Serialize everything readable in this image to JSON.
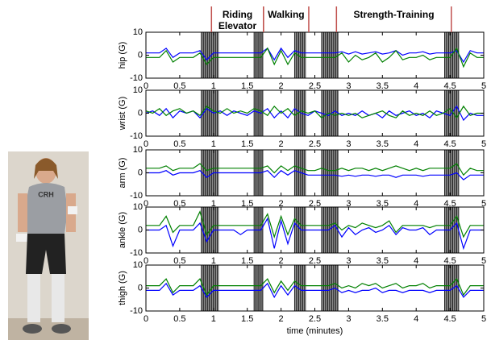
{
  "annotations": {
    "segments": [
      {
        "label": "Riding Elevator",
        "start": 0.97,
        "end": 1.74
      },
      {
        "label": "Walking",
        "start": 1.74,
        "end": 2.41
      },
      {
        "label": "Strength-Training",
        "start": 2.82,
        "end": 4.52
      }
    ],
    "transition_bands": [
      [
        0.82,
        1.08
      ],
      [
        1.6,
        1.74
      ],
      [
        2.2,
        2.37
      ],
      [
        2.6,
        2.85
      ],
      [
        4.42,
        4.63
      ]
    ]
  },
  "chart_data": [
    {
      "type": "line",
      "ylabel": "hip (G)",
      "xlim": [
        0,
        5
      ],
      "ylim": [
        -10,
        10
      ],
      "yticks": [
        -10,
        0,
        10
      ],
      "xticks": [
        0,
        0.5,
        1,
        1.5,
        2,
        2.5,
        3,
        3.5,
        4,
        4.5,
        5
      ],
      "x": [
        0,
        0.1,
        0.2,
        0.3,
        0.4,
        0.5,
        0.6,
        0.7,
        0.8,
        0.9,
        1,
        1.1,
        1.2,
        1.3,
        1.4,
        1.5,
        1.6,
        1.7,
        1.8,
        1.9,
        2,
        2.1,
        2.2,
        2.3,
        2.4,
        2.5,
        2.6,
        2.7,
        2.8,
        2.9,
        3,
        3.1,
        3.2,
        3.3,
        3.4,
        3.5,
        3.6,
        3.7,
        3.8,
        3.9,
        4,
        4.1,
        4.2,
        4.3,
        4.4,
        4.5,
        4.6,
        4.7,
        4.8,
        4.9,
        5
      ],
      "series": [
        {
          "color": "#0000ff",
          "values": [
            1,
            1,
            1,
            3,
            -1,
            1,
            1,
            1,
            2,
            -2,
            1,
            1,
            1,
            1,
            1,
            1,
            1,
            1,
            3,
            -2,
            3,
            -1,
            2,
            1,
            1,
            1,
            1,
            1,
            1,
            1.5,
            0.5,
            1.5,
            0.5,
            1,
            1.5,
            0.5,
            1,
            2,
            0,
            1,
            1,
            1.5,
            0.5,
            1,
            1,
            1,
            2,
            -3,
            2,
            1,
            1
          ]
        },
        {
          "color": "#008000",
          "values": [
            -1,
            -1,
            -1,
            2,
            -3,
            -1,
            -1,
            -1,
            1,
            -4,
            -1,
            -1,
            -1,
            -1,
            -1,
            -1,
            -1,
            -1,
            3,
            -4,
            2,
            -4,
            1,
            -1,
            -1,
            -1,
            -1,
            -1,
            -1,
            1,
            -3,
            0,
            -2,
            -1,
            1,
            -3,
            -1,
            2,
            -2,
            -1,
            -1,
            0,
            -2,
            -1,
            -1,
            -1,
            3,
            -5,
            1,
            -1,
            -1
          ]
        }
      ]
    },
    {
      "type": "line",
      "ylabel": "wrist (G)",
      "xlim": [
        0,
        5
      ],
      "ylim": [
        -10,
        10
      ],
      "yticks": [
        -10,
        0,
        10
      ],
      "xticks": [
        0,
        0.5,
        1,
        1.5,
        2,
        2.5,
        3,
        3.5,
        4,
        4.5,
        5
      ],
      "x": [
        0,
        0.1,
        0.2,
        0.3,
        0.4,
        0.5,
        0.6,
        0.7,
        0.8,
        0.9,
        1,
        1.1,
        1.2,
        1.3,
        1.4,
        1.5,
        1.6,
        1.7,
        1.8,
        1.9,
        2,
        2.1,
        2.2,
        2.3,
        2.4,
        2.5,
        2.6,
        2.7,
        2.8,
        2.9,
        3,
        3.1,
        3.2,
        3.3,
        3.4,
        3.5,
        3.6,
        3.7,
        3.8,
        3.9,
        4,
        4.1,
        4.2,
        4.3,
        4.4,
        4.5,
        4.6,
        4.7,
        4.8,
        4.9,
        5
      ],
      "series": [
        {
          "color": "#0000ff",
          "values": [
            0,
            1,
            -1,
            2,
            -2,
            1,
            0,
            1,
            -2,
            2,
            0,
            1,
            -1,
            1,
            0,
            -1,
            1,
            0,
            2,
            -2,
            1,
            -2,
            2,
            0,
            -1,
            1,
            0,
            -1,
            1,
            -1,
            0,
            -1,
            1,
            -1,
            0,
            -2,
            1,
            -1,
            0,
            1,
            -1,
            0,
            -2,
            1,
            0,
            -1,
            3,
            -3,
            0,
            -1,
            -1
          ]
        },
        {
          "color": "#008000",
          "values": [
            1,
            0,
            2,
            -1,
            1,
            2,
            0,
            1,
            -1,
            3,
            1,
            0,
            2,
            0,
            1,
            0,
            2,
            1,
            -1,
            3,
            0,
            2,
            -1,
            1,
            0,
            1,
            -2,
            0,
            -1,
            0,
            -1,
            0,
            -2,
            -1,
            0,
            1,
            -1,
            -2,
            1,
            -1,
            0,
            -1,
            1,
            -1,
            0,
            2,
            -2,
            3,
            -1,
            0,
            0
          ]
        }
      ]
    },
    {
      "type": "line",
      "ylabel": "arm (G)",
      "xlim": [
        0,
        5
      ],
      "ylim": [
        -10,
        10
      ],
      "yticks": [
        -10,
        0,
        10
      ],
      "xticks": [
        0,
        0.5,
        1,
        1.5,
        2,
        2.5,
        3,
        3.5,
        4,
        4.5,
        5
      ],
      "x": [
        0,
        0.1,
        0.2,
        0.3,
        0.4,
        0.5,
        0.6,
        0.7,
        0.8,
        0.9,
        1,
        1.1,
        1.2,
        1.3,
        1.4,
        1.5,
        1.6,
        1.7,
        1.8,
        1.9,
        2,
        2.1,
        2.2,
        2.3,
        2.4,
        2.5,
        2.6,
        2.7,
        2.8,
        2.9,
        3,
        3.1,
        3.2,
        3.3,
        3.4,
        3.5,
        3.6,
        3.7,
        3.8,
        3.9,
        4,
        4.1,
        4.2,
        4.3,
        4.4,
        4.5,
        4.6,
        4.7,
        4.8,
        4.9,
        5
      ],
      "series": [
        {
          "color": "#0000ff",
          "values": [
            0,
            0,
            0,
            1,
            -1,
            0,
            0,
            0,
            1,
            -2,
            0,
            0,
            0,
            0,
            0,
            0,
            0,
            0,
            1,
            -2,
            1,
            -1,
            1,
            0,
            -1,
            -1,
            -1,
            -1,
            -1,
            -1.5,
            -1,
            -1.5,
            -1,
            -1,
            -1.5,
            -1,
            -1,
            -2,
            -1,
            -1,
            -1,
            -1.5,
            -1,
            -1,
            -1,
            -1,
            0,
            -3,
            -1,
            -1,
            -1
          ]
        },
        {
          "color": "#008000",
          "values": [
            2,
            2,
            2,
            3,
            1,
            2,
            2,
            2,
            4,
            1,
            2,
            2,
            2,
            2,
            2,
            2,
            2,
            2,
            3,
            0,
            3,
            1,
            3,
            2,
            1,
            1,
            2,
            1,
            1,
            2,
            1,
            2,
            2,
            1,
            2,
            1,
            2,
            3,
            2,
            1,
            2,
            1,
            2,
            2,
            2,
            2,
            4,
            -1,
            2,
            1,
            1
          ]
        }
      ]
    },
    {
      "type": "line",
      "ylabel": "ankle (G)",
      "xlim": [
        0,
        5
      ],
      "ylim": [
        -10,
        10
      ],
      "yticks": [
        -10,
        0,
        10
      ],
      "xticks": [
        0,
        0.5,
        1,
        1.5,
        2,
        2.5,
        3,
        3.5,
        4,
        4.5,
        5
      ],
      "x": [
        0,
        0.1,
        0.2,
        0.3,
        0.4,
        0.5,
        0.6,
        0.7,
        0.8,
        0.9,
        1,
        1.1,
        1.2,
        1.3,
        1.4,
        1.5,
        1.6,
        1.7,
        1.8,
        1.9,
        2,
        2.1,
        2.2,
        2.3,
        2.4,
        2.5,
        2.6,
        2.7,
        2.8,
        2.9,
        3,
        3.1,
        3.2,
        3.3,
        3.4,
        3.5,
        3.6,
        3.7,
        3.8,
        3.9,
        4,
        4.1,
        4.2,
        4.3,
        4.4,
        4.5,
        4.6,
        4.7,
        4.8,
        4.9,
        5
      ],
      "series": [
        {
          "color": "#0000ff",
          "values": [
            0,
            0,
            0,
            2,
            -7,
            0,
            0,
            0,
            3,
            -5,
            0,
            0,
            0,
            0,
            -2,
            0,
            0,
            0,
            5,
            -8,
            4,
            -6,
            3,
            0,
            0,
            0,
            0,
            0,
            2,
            -3,
            1,
            -2,
            0,
            1,
            -1,
            0,
            2,
            -2,
            1,
            0,
            0,
            1,
            -2,
            0,
            0,
            0,
            3,
            -8,
            0,
            0,
            0
          ]
        },
        {
          "color": "#008000",
          "values": [
            2,
            2,
            2,
            6,
            -1,
            2,
            2,
            2,
            8,
            -2,
            2,
            2,
            2,
            2,
            2,
            2,
            2,
            2,
            7,
            -3,
            6,
            -2,
            5,
            2,
            2,
            2,
            2,
            2,
            3,
            0,
            2,
            1,
            3,
            2,
            1,
            2,
            4,
            -1,
            2,
            2,
            2,
            2,
            1,
            2,
            2,
            2,
            6,
            -3,
            2,
            2,
            2
          ]
        }
      ]
    },
    {
      "type": "line",
      "ylabel": "thigh (G)",
      "xlabel": "time (minutes)",
      "xlim": [
        0,
        5
      ],
      "ylim": [
        -10,
        10
      ],
      "yticks": [
        -10,
        0,
        10
      ],
      "xticks": [
        0,
        0.5,
        1,
        1.5,
        2,
        2.5,
        3,
        3.5,
        4,
        4.5,
        5
      ],
      "x": [
        0,
        0.1,
        0.2,
        0.3,
        0.4,
        0.5,
        0.6,
        0.7,
        0.8,
        0.9,
        1,
        1.1,
        1.2,
        1.3,
        1.4,
        1.5,
        1.6,
        1.7,
        1.8,
        1.9,
        2,
        2.1,
        2.2,
        2.3,
        2.4,
        2.5,
        2.6,
        2.7,
        2.8,
        2.9,
        3,
        3.1,
        3.2,
        3.3,
        3.4,
        3.5,
        3.6,
        3.7,
        3.8,
        3.9,
        4,
        4.1,
        4.2,
        4.3,
        4.4,
        4.5,
        4.6,
        4.7,
        4.8,
        4.9,
        5
      ],
      "series": [
        {
          "color": "#0000ff",
          "values": [
            -1,
            -1,
            -1,
            2,
            -3,
            -1,
            -1,
            -1,
            1,
            -4,
            -1,
            -1,
            -1,
            -1,
            -1,
            -1,
            -1,
            -1,
            2,
            -4,
            1,
            -3,
            1,
            -1,
            -1,
            -1,
            -1,
            -1,
            0,
            -2,
            -1,
            -2,
            -1,
            -1,
            0,
            -2,
            -1,
            -1,
            -2,
            -1,
            -1,
            -1,
            -2,
            -1,
            -1,
            -1,
            1,
            -4,
            -1,
            -1,
            -1
          ]
        },
        {
          "color": "#008000",
          "values": [
            1,
            1,
            1,
            4,
            -2,
            1,
            1,
            1,
            4,
            -3,
            1,
            1,
            1,
            1,
            1,
            1,
            1,
            1,
            4,
            -2,
            3,
            -1,
            3,
            1,
            1,
            1,
            1,
            1,
            2,
            0,
            1,
            0,
            2,
            1,
            2,
            0,
            1,
            2,
            0,
            1,
            1,
            2,
            0,
            1,
            1,
            1,
            4,
            -3,
            1,
            1,
            1
          ]
        }
      ]
    }
  ]
}
